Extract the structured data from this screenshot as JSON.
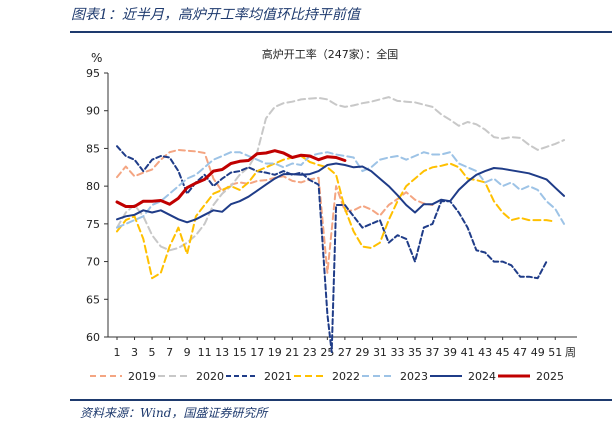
{
  "caption": "图表1：近半月，高炉开工率均值环比持平前值",
  "source": "资料来源：Wind，国盛证券研究所",
  "chart_data": {
    "type": "line",
    "title": "高炉开工率（247家）：全国",
    "ylabel": "%",
    "xlabel": "周",
    "ylim": [
      60,
      95
    ],
    "yticks": [
      60,
      65,
      70,
      75,
      80,
      85,
      90,
      95
    ],
    "xlim": [
      1,
      52
    ],
    "xticks": [
      1,
      3,
      5,
      7,
      9,
      11,
      13,
      15,
      17,
      19,
      21,
      23,
      25,
      27,
      29,
      31,
      33,
      35,
      37,
      39,
      41,
      43,
      45,
      47,
      49,
      51
    ],
    "series": [
      {
        "name": "2019",
        "color": "#f4a582",
        "dash": "6,4",
        "width": 2,
        "x": [
          1,
          2,
          3,
          4,
          5,
          6,
          7,
          8,
          9,
          10,
          11,
          12,
          13,
          14,
          15,
          16,
          17,
          18,
          19,
          20,
          21,
          22,
          23,
          24,
          25,
          26,
          27,
          28,
          29,
          30,
          31,
          32,
          33,
          34,
          35,
          36,
          37
        ],
        "values": [
          81.2,
          82.6,
          81.3,
          81.8,
          82.2,
          83.5,
          84.5,
          84.8,
          84.7,
          84.6,
          84.4,
          81.0,
          79.3,
          80.2,
          80.5,
          80.3,
          80.7,
          80.8,
          81.1,
          81.3,
          80.7,
          80.5,
          80.9,
          81.1,
          68.5,
          80.0,
          76.7,
          76.8,
          77.4,
          76.9,
          76.1,
          77.5,
          78.3,
          79.2,
          78.2,
          77.7,
          77.5
        ]
      },
      {
        "name": "2020",
        "color": "#c8c8c8",
        "dash": "7,4",
        "width": 2,
        "x": [
          1,
          2,
          3,
          4,
          5,
          6,
          7,
          8,
          9,
          10,
          11,
          12,
          13,
          14,
          15,
          16,
          17,
          18,
          19,
          20,
          21,
          22,
          23,
          24,
          25,
          26,
          27,
          28,
          29,
          30,
          31,
          32,
          33,
          34,
          35,
          36,
          37,
          38,
          39,
          40,
          41,
          42,
          43,
          44,
          45,
          46,
          47,
          48,
          49,
          50,
          51,
          52
        ],
        "values": [
          74.5,
          76.5,
          77.5,
          76.0,
          73.5,
          72.0,
          71.5,
          71.8,
          72.5,
          73.5,
          75.0,
          77.5,
          79.0,
          80.0,
          81.5,
          82.5,
          84.5,
          89.0,
          90.5,
          91.0,
          91.2,
          91.5,
          91.6,
          91.7,
          91.5,
          90.8,
          90.5,
          90.7,
          91.0,
          91.2,
          91.5,
          91.8,
          91.3,
          91.2,
          91.1,
          90.8,
          90.5,
          89.5,
          88.8,
          88.0,
          88.5,
          88.2,
          87.5,
          86.5,
          86.3,
          86.5,
          86.4,
          85.5,
          84.8,
          85.2,
          85.6,
          86.1
        ]
      },
      {
        "name": "2021",
        "color": "#1f3c88",
        "dash": "5,3",
        "width": 2,
        "x": [
          1,
          2,
          3,
          4,
          5,
          6,
          7,
          8,
          9,
          10,
          11,
          12,
          13,
          14,
          15,
          16,
          17,
          18,
          19,
          20,
          21,
          22,
          23,
          24,
          25,
          25.5,
          26,
          27,
          28,
          29,
          30,
          31,
          32,
          33,
          34,
          35,
          36,
          37,
          38,
          39,
          40,
          41,
          42,
          43,
          44,
          45,
          46,
          47,
          48,
          49,
          50
        ],
        "values": [
          85.3,
          84.0,
          83.5,
          82.0,
          83.5,
          84.0,
          83.8,
          82.0,
          79.0,
          80.5,
          81.5,
          80.0,
          81.0,
          81.8,
          82.0,
          82.5,
          82.0,
          81.8,
          81.5,
          82.0,
          81.5,
          81.8,
          80.8,
          80.2,
          63.0,
          58.0,
          77.5,
          77.5,
          76.0,
          74.5,
          75.0,
          75.5,
          72.5,
          73.5,
          73.0,
          70.0,
          74.5,
          75.0,
          78.0,
          78.0,
          76.5,
          74.5,
          71.5,
          71.2,
          70.0,
          70.0,
          69.5,
          68.0,
          68.0,
          67.8,
          70.0
        ]
      },
      {
        "name": "2022",
        "color": "#ffc000",
        "dash": "7,4",
        "width": 2,
        "x": [
          1,
          2,
          3,
          4,
          5,
          6,
          7,
          8,
          9,
          10,
          11,
          12,
          13,
          14,
          15,
          16,
          17,
          18,
          19,
          20,
          21,
          22,
          23,
          24,
          25,
          26,
          27,
          28,
          29,
          30,
          31,
          32,
          33,
          34,
          35,
          36,
          37,
          38,
          39,
          40,
          41,
          42,
          43,
          44,
          45,
          46,
          47,
          48,
          49,
          50,
          51
        ],
        "values": [
          74.0,
          75.5,
          76.0,
          73.0,
          67.8,
          68.5,
          72.0,
          74.5,
          71.0,
          76.0,
          77.5,
          79.0,
          79.5,
          80.0,
          79.5,
          80.5,
          82.0,
          82.5,
          83.0,
          83.5,
          83.8,
          84.0,
          83.2,
          82.8,
          82.5,
          81.5,
          77.0,
          74.0,
          72.0,
          71.8,
          72.5,
          75.5,
          78.0,
          80.0,
          81.0,
          82.0,
          82.5,
          82.7,
          83.0,
          82.5,
          81.0,
          80.8,
          80.5,
          78.0,
          76.5,
          75.5,
          75.8,
          75.5,
          75.5,
          75.5,
          75.3
        ]
      },
      {
        "name": "2023",
        "color": "#9dc3e6",
        "dash": "7,4",
        "width": 2,
        "x": [
          1,
          2,
          3,
          4,
          5,
          6,
          7,
          8,
          9,
          10,
          11,
          12,
          13,
          14,
          15,
          16,
          17,
          18,
          19,
          20,
          21,
          22,
          23,
          24,
          25,
          26,
          27,
          28,
          29,
          30,
          31,
          32,
          33,
          34,
          35,
          36,
          37,
          38,
          39,
          40,
          41,
          42,
          43,
          44,
          45,
          46,
          47,
          48,
          49,
          50,
          51,
          52
        ],
        "values": [
          74.5,
          75.0,
          75.5,
          76.0,
          77.5,
          78.0,
          79.0,
          80.0,
          81.0,
          81.5,
          82.5,
          83.5,
          84.0,
          84.5,
          84.5,
          84.0,
          83.5,
          83.0,
          83.0,
          82.5,
          83.0,
          82.8,
          84.0,
          84.3,
          84.5,
          84.2,
          84.0,
          83.8,
          82.0,
          82.5,
          83.5,
          83.8,
          84.0,
          83.5,
          84.0,
          84.5,
          84.2,
          84.2,
          84.5,
          83.0,
          82.5,
          82.0,
          80.5,
          81.0,
          80.0,
          80.5,
          79.5,
          80.0,
          79.5,
          78.0,
          77.0,
          75.0
        ]
      },
      {
        "name": "2024",
        "color": "#1f3c88",
        "dash": "",
        "width": 2,
        "x": [
          1,
          2,
          3,
          4,
          5,
          6,
          7,
          8,
          9,
          10,
          11,
          12,
          13,
          14,
          15,
          16,
          17,
          18,
          19,
          20,
          21,
          22,
          23,
          24,
          25,
          26,
          27,
          28,
          29,
          30,
          31,
          32,
          33,
          34,
          35,
          36,
          37,
          38,
          39,
          40,
          41,
          42,
          43,
          44,
          45,
          46,
          47,
          48,
          49,
          50,
          51,
          52
        ],
        "values": [
          75.6,
          76.0,
          76.2,
          76.8,
          76.5,
          76.8,
          76.2,
          75.6,
          75.2,
          75.6,
          76.2,
          76.8,
          76.6,
          77.6,
          78.0,
          78.6,
          79.4,
          80.2,
          81.0,
          81.6,
          81.6,
          81.5,
          81.6,
          82.0,
          82.8,
          83.0,
          82.8,
          82.5,
          82.6,
          82.0,
          81.0,
          80.0,
          78.8,
          77.5,
          76.5,
          77.6,
          77.6,
          78.2,
          78.0,
          79.5,
          80.6,
          81.5,
          82.0,
          82.4,
          82.3,
          82.1,
          81.9,
          81.7,
          81.3,
          80.9,
          79.8,
          78.7
        ]
      },
      {
        "name": "2025",
        "color": "#c00000",
        "dash": "",
        "width": 3,
        "x": [
          1,
          2,
          3,
          4,
          5,
          6,
          7,
          8,
          9,
          10,
          11,
          12,
          13,
          14,
          15,
          16,
          17,
          18,
          19,
          20,
          21,
          22,
          23,
          24,
          25,
          26,
          27
        ],
        "values": [
          77.9,
          77.3,
          77.3,
          78.0,
          78.0,
          78.1,
          77.6,
          78.4,
          79.8,
          80.4,
          80.9,
          82.0,
          82.2,
          83.0,
          83.3,
          83.4,
          84.3,
          84.4,
          84.7,
          84.4,
          83.8,
          84.1,
          84.0,
          83.5,
          83.9,
          83.8,
          83.4
        ]
      }
    ]
  }
}
